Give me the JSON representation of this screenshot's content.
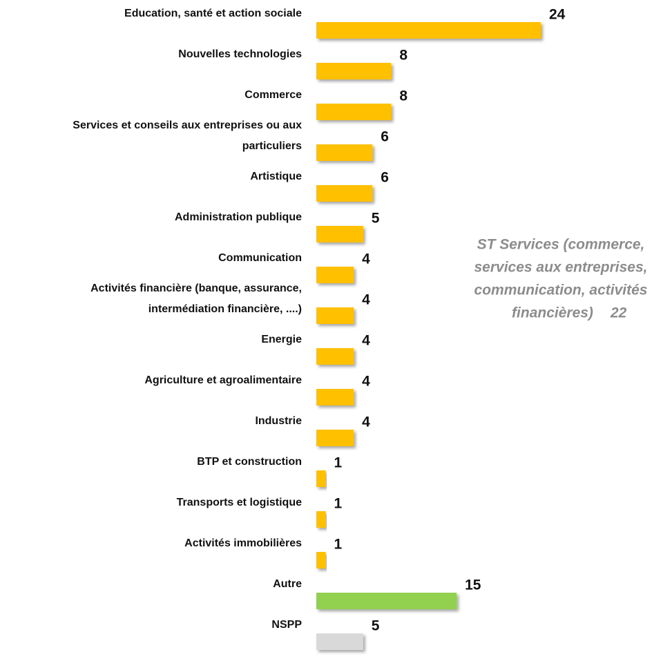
{
  "chart_data": {
    "type": "hbar",
    "categories": [
      "Education, santé et action sociale",
      "Nouvelles technologies",
      "Commerce",
      "Services et conseils aux entreprises ou aux particuliers",
      "Artistique",
      "Administration publique",
      "Communication",
      "Activités financière (banque, assurance, intermédiation financière, ....)",
      "Energie",
      "Agriculture et agroalimentaire",
      "Industrie",
      "BTP et construction",
      "Transports et logistique",
      "Activités immobilières",
      "Autre",
      "NSPP"
    ],
    "values": [
      24,
      8,
      8,
      6,
      6,
      5,
      4,
      4,
      4,
      4,
      4,
      1,
      1,
      1,
      15,
      5
    ],
    "colors": [
      "#ffc000",
      "#ffc000",
      "#ffc000",
      "#ffc000",
      "#ffc000",
      "#ffc000",
      "#ffc000",
      "#ffc000",
      "#ffc000",
      "#ffc000",
      "#ffc000",
      "#ffc000",
      "#ffc000",
      "#ffc000",
      "#92d050",
      "#d9d9d9"
    ],
    "annotation": {
      "lines": [
        "ST Services (commerce,",
        "services aux entreprises,",
        "communication, activités",
        "financières)"
      ],
      "value": 22
    }
  }
}
